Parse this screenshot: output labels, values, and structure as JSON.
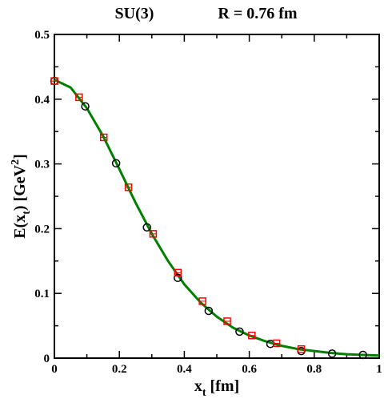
{
  "chart_data": {
    "type": "scatter",
    "title_left": "SU(3)",
    "title_right": "R = 0.76 fm",
    "xlabel": {
      "main": "x",
      "sub": "t",
      "rest": " [fm]"
    },
    "ylabel": {
      "pre": "E(x",
      "sub": "t",
      "mid": ") [GeV",
      "sup": "2",
      "post": "]"
    },
    "xlim": [
      0,
      1
    ],
    "ylim": [
      0,
      0.5
    ],
    "xticks": [
      0,
      0.2,
      0.4,
      0.6,
      0.8,
      1
    ],
    "xtick_labels": [
      "0",
      "0.2",
      "0.4",
      "0.6",
      "0.8",
      "1"
    ],
    "yticks": [
      0,
      0.1,
      0.2,
      0.3,
      0.4,
      0.5
    ],
    "ytick_labels": [
      "0",
      "0.1",
      "0.2",
      "0.3",
      "0.4",
      "0.5"
    ],
    "grid": false,
    "legend": "none",
    "series": [
      {
        "kind": "circle",
        "color": "#000000",
        "points": [
          {
            "x": 0.0,
            "y": 0.428
          },
          {
            "x": 0.095,
            "y": 0.389
          },
          {
            "x": 0.19,
            "y": 0.301
          },
          {
            "x": 0.285,
            "y": 0.202
          },
          {
            "x": 0.38,
            "y": 0.124
          },
          {
            "x": 0.475,
            "y": 0.073
          },
          {
            "x": 0.57,
            "y": 0.041
          },
          {
            "x": 0.665,
            "y": 0.022
          },
          {
            "x": 0.76,
            "y": 0.011
          },
          {
            "x": 0.855,
            "y": 0.007
          },
          {
            "x": 0.95,
            "y": 0.005
          }
        ]
      },
      {
        "kind": "square",
        "color": "#ff0000",
        "points": [
          {
            "x": 0.0,
            "y": 0.428
          },
          {
            "x": 0.076,
            "y": 0.403
          },
          {
            "x": 0.152,
            "y": 0.341
          },
          {
            "x": 0.228,
            "y": 0.264
          },
          {
            "x": 0.304,
            "y": 0.192
          },
          {
            "x": 0.38,
            "y": 0.132
          },
          {
            "x": 0.456,
            "y": 0.088
          },
          {
            "x": 0.532,
            "y": 0.057
          },
          {
            "x": 0.608,
            "y": 0.035
          },
          {
            "x": 0.684,
            "y": 0.023
          },
          {
            "x": 0.76,
            "y": 0.014
          }
        ]
      },
      {
        "kind": "line",
        "color": "#008000",
        "points": [
          {
            "x": 0.0,
            "y": 0.43
          },
          {
            "x": 0.05,
            "y": 0.418
          },
          {
            "x": 0.1,
            "y": 0.386
          },
          {
            "x": 0.15,
            "y": 0.343
          },
          {
            "x": 0.2,
            "y": 0.292
          },
          {
            "x": 0.25,
            "y": 0.24
          },
          {
            "x": 0.3,
            "y": 0.192
          },
          {
            "x": 0.35,
            "y": 0.15
          },
          {
            "x": 0.4,
            "y": 0.114
          },
          {
            "x": 0.45,
            "y": 0.086
          },
          {
            "x": 0.5,
            "y": 0.064
          },
          {
            "x": 0.55,
            "y": 0.047
          },
          {
            "x": 0.6,
            "y": 0.035
          },
          {
            "x": 0.65,
            "y": 0.026
          },
          {
            "x": 0.7,
            "y": 0.019
          },
          {
            "x": 0.75,
            "y": 0.014
          },
          {
            "x": 0.8,
            "y": 0.011
          },
          {
            "x": 0.85,
            "y": 0.008
          },
          {
            "x": 0.9,
            "y": 0.006
          },
          {
            "x": 0.95,
            "y": 0.005
          },
          {
            "x": 1.0,
            "y": 0.004
          }
        ]
      }
    ]
  }
}
